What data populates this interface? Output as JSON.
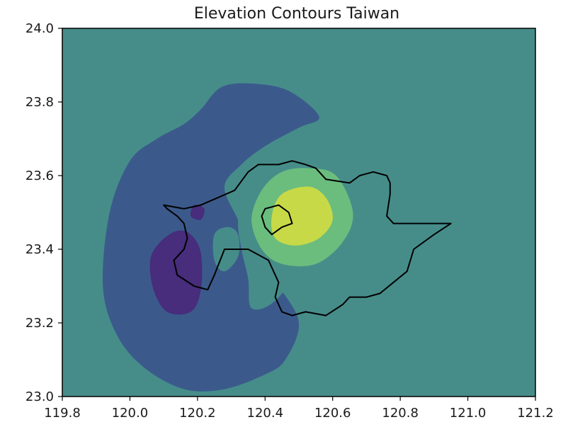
{
  "chart_data": {
    "type": "contour",
    "title": "Elevation Contours Taiwan",
    "xlabel": "",
    "ylabel": "",
    "xlim": [
      119.8,
      121.2
    ],
    "ylim": [
      23.0,
      24.0
    ],
    "x_ticks": [
      "119.8",
      "120.0",
      "120.2",
      "120.4",
      "120.6",
      "120.8",
      "121.0",
      "121.2"
    ],
    "y_ticks": [
      "23.0",
      "23.2",
      "23.4",
      "23.6",
      "23.8",
      "24.0"
    ],
    "grid": false,
    "colormap": "viridis",
    "level_colors": [
      "#472d7b",
      "#3b5a8b",
      "#468d8a",
      "#6bbd7d",
      "#c8d948"
    ],
    "contour_regions": [
      {
        "level": 1,
        "color": "#3b5a8b",
        "points": [
          [
            120.27,
            23.84
          ],
          [
            120.36,
            23.85
          ],
          [
            120.47,
            23.83
          ],
          [
            120.56,
            23.76
          ],
          [
            120.5,
            23.73
          ],
          [
            120.4,
            23.68
          ],
          [
            120.33,
            23.63
          ],
          [
            120.28,
            23.57
          ],
          [
            120.32,
            23.48
          ],
          [
            120.36,
            23.4
          ],
          [
            120.44,
            23.3
          ],
          [
            120.5,
            23.2
          ],
          [
            120.46,
            23.1
          ],
          [
            120.4,
            23.06
          ],
          [
            120.28,
            23.02
          ],
          [
            120.16,
            23.02
          ],
          [
            120.04,
            23.08
          ],
          [
            119.96,
            23.17
          ],
          [
            119.92,
            23.3
          ],
          [
            119.94,
            23.5
          ],
          [
            120.0,
            23.64
          ],
          [
            120.08,
            23.7
          ],
          [
            120.16,
            23.74
          ],
          [
            120.21,
            23.78
          ]
        ]
      },
      {
        "level": 2,
        "color": "#468d8a",
        "points": [
          [
            120.25,
            23.44
          ],
          [
            120.29,
            23.46
          ],
          [
            120.32,
            23.44
          ],
          [
            120.32,
            23.38
          ],
          [
            120.28,
            23.34
          ],
          [
            120.25,
            23.37
          ]
        ]
      },
      {
        "level": 2,
        "color": "#468d8a",
        "points": [
          [
            120.44,
            23.62
          ],
          [
            120.5,
            23.65
          ],
          [
            120.56,
            23.6
          ],
          [
            120.57,
            23.47
          ],
          [
            120.51,
            23.36
          ],
          [
            120.43,
            23.26
          ],
          [
            120.36,
            23.24
          ],
          [
            120.35,
            23.32
          ],
          [
            120.33,
            23.4
          ],
          [
            120.32,
            23.48
          ],
          [
            120.34,
            23.56
          ],
          [
            120.38,
            23.6
          ]
        ]
      },
      {
        "level": 3,
        "color": "#6bbd7d",
        "points": [
          [
            120.53,
            23.62
          ],
          [
            120.61,
            23.6
          ],
          [
            120.66,
            23.5
          ],
          [
            120.63,
            23.42
          ],
          [
            120.55,
            23.36
          ],
          [
            120.45,
            23.36
          ],
          [
            120.39,
            23.4
          ],
          [
            120.36,
            23.48
          ],
          [
            120.39,
            23.56
          ],
          [
            120.45,
            23.61
          ]
        ]
      },
      {
        "level": 4,
        "color": "#c8d948",
        "points": [
          [
            120.53,
            23.57
          ],
          [
            120.58,
            23.54
          ],
          [
            120.6,
            23.48
          ],
          [
            120.56,
            23.43
          ],
          [
            120.49,
            23.41
          ],
          [
            120.43,
            23.43
          ],
          [
            120.42,
            23.49
          ],
          [
            120.45,
            23.55
          ]
        ]
      },
      {
        "level": 0,
        "color": "#472d7b",
        "points": [
          [
            120.14,
            23.45
          ],
          [
            120.18,
            23.44
          ],
          [
            120.21,
            23.39
          ],
          [
            120.21,
            23.29
          ],
          [
            120.18,
            23.23
          ],
          [
            120.11,
            23.23
          ],
          [
            120.07,
            23.29
          ],
          [
            120.06,
            23.37
          ],
          [
            120.09,
            23.42
          ]
        ]
      },
      {
        "level": 0,
        "color": "#472d7b",
        "points": [
          [
            120.19,
            23.52
          ],
          [
            120.22,
            23.51
          ],
          [
            120.21,
            23.48
          ],
          [
            120.18,
            23.49
          ]
        ]
      }
    ],
    "boundaries": [
      {
        "name": "outer",
        "points": [
          [
            120.1,
            23.52
          ],
          [
            120.16,
            23.51
          ],
          [
            120.21,
            23.52
          ],
          [
            120.26,
            23.54
          ],
          [
            120.31,
            23.56
          ],
          [
            120.35,
            23.61
          ],
          [
            120.38,
            23.63
          ],
          [
            120.44,
            23.63
          ],
          [
            120.48,
            23.64
          ],
          [
            120.52,
            23.63
          ],
          [
            120.55,
            23.62
          ],
          [
            120.58,
            23.59
          ],
          [
            120.65,
            23.58
          ],
          [
            120.68,
            23.6
          ],
          [
            120.72,
            23.61
          ],
          [
            120.76,
            23.6
          ],
          [
            120.77,
            23.58
          ],
          [
            120.77,
            23.55
          ],
          [
            120.76,
            23.49
          ],
          [
            120.78,
            23.47
          ],
          [
            120.88,
            23.47
          ],
          [
            120.95,
            23.47
          ],
          [
            120.9,
            23.44
          ],
          [
            120.84,
            23.4
          ],
          [
            120.82,
            23.34
          ],
          [
            120.74,
            23.28
          ],
          [
            120.7,
            23.27
          ],
          [
            120.65,
            23.27
          ],
          [
            120.63,
            23.25
          ],
          [
            120.58,
            23.22
          ],
          [
            120.52,
            23.23
          ],
          [
            120.48,
            23.22
          ],
          [
            120.45,
            23.23
          ],
          [
            120.43,
            23.27
          ],
          [
            120.44,
            23.31
          ],
          [
            120.41,
            23.37
          ],
          [
            120.35,
            23.4
          ],
          [
            120.28,
            23.4
          ],
          [
            120.25,
            23.33
          ],
          [
            120.23,
            23.29
          ],
          [
            120.19,
            23.3
          ],
          [
            120.14,
            23.33
          ],
          [
            120.13,
            23.37
          ],
          [
            120.16,
            23.4
          ],
          [
            120.17,
            23.43
          ],
          [
            120.16,
            23.47
          ],
          [
            120.14,
            23.49
          ],
          [
            120.11,
            23.51
          ]
        ]
      },
      {
        "name": "inner",
        "points": [
          [
            120.4,
            23.51
          ],
          [
            120.44,
            23.52
          ],
          [
            120.47,
            23.5
          ],
          [
            120.48,
            23.47
          ],
          [
            120.45,
            23.46
          ],
          [
            120.42,
            23.44
          ],
          [
            120.4,
            23.46
          ],
          [
            120.39,
            23.49
          ]
        ]
      }
    ]
  }
}
